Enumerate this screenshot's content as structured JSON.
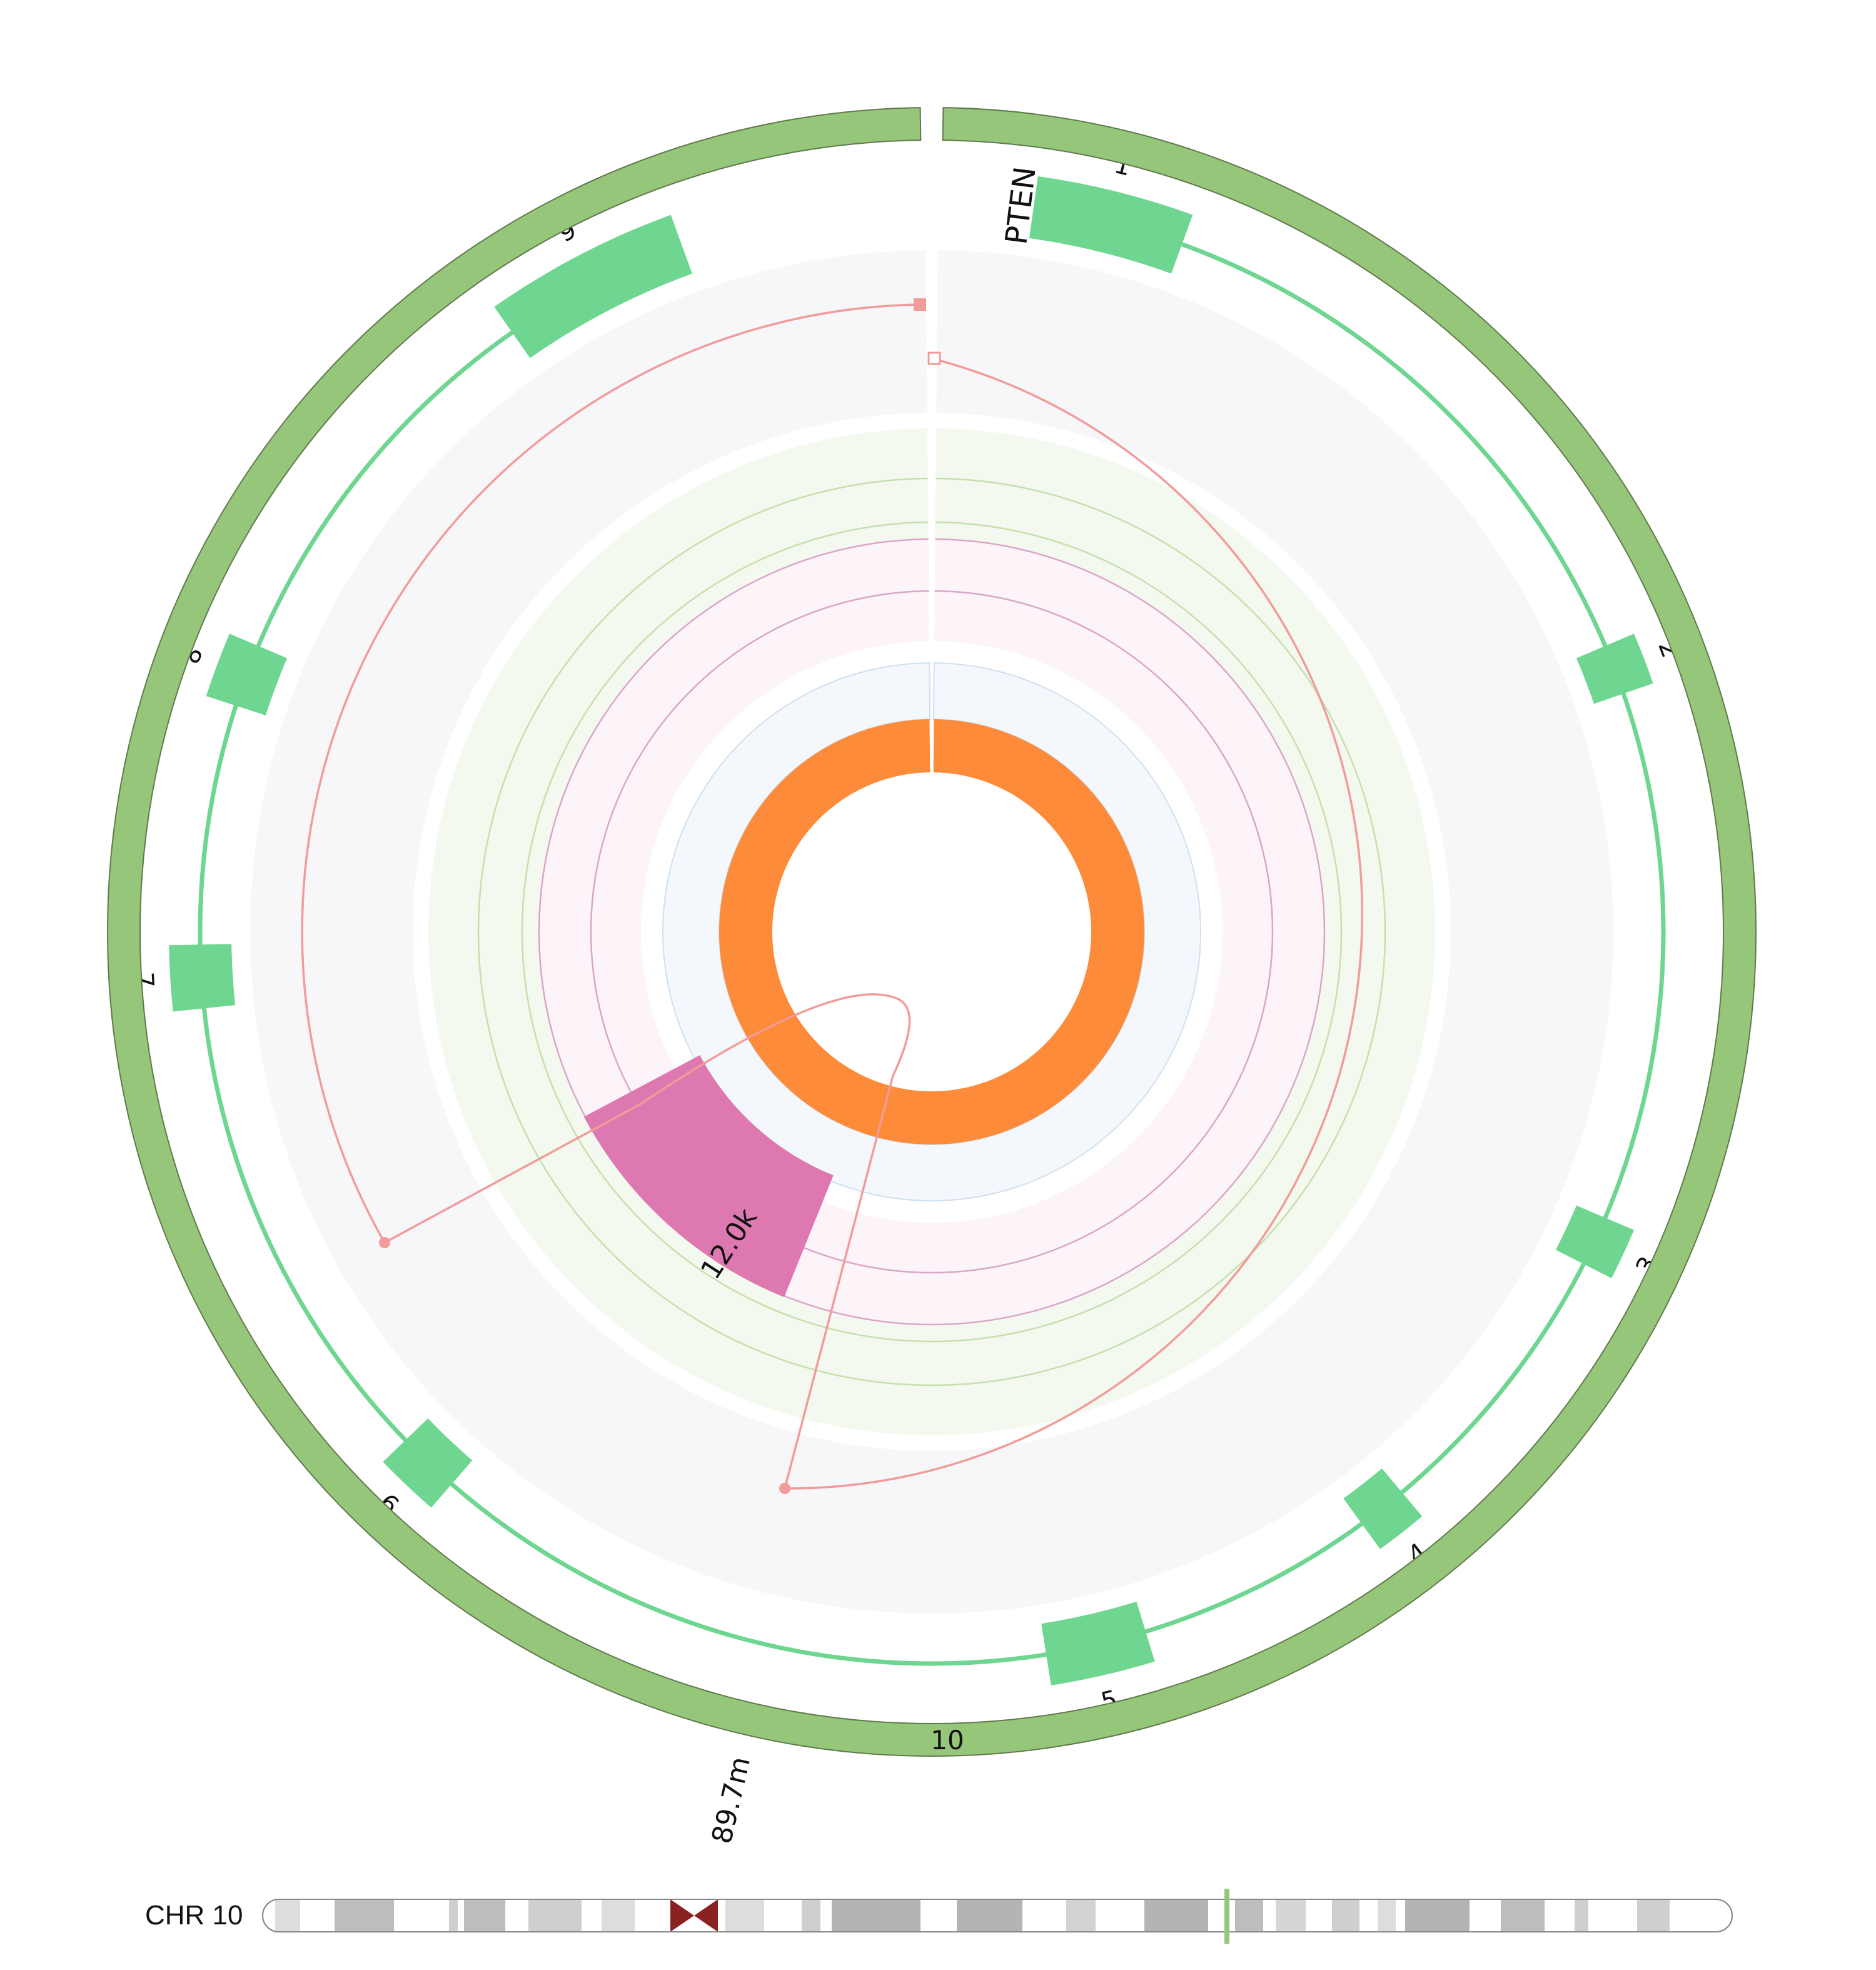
{
  "gene": {
    "name": "PTEN",
    "color": "#6ed690",
    "exons": [
      {
        "label": "1",
        "start": 8,
        "end": 20
      },
      {
        "label": "2",
        "start": 67,
        "end": 71
      },
      {
        "label": "3",
        "start": 113,
        "end": 117
      },
      {
        "label": "4",
        "start": 140,
        "end": 144
      },
      {
        "label": "5",
        "start": 163,
        "end": 171
      },
      {
        "label": "6",
        "start": 221,
        "end": 226
      },
      {
        "label": "7",
        "start": 264,
        "end": 269
      },
      {
        "label": "8",
        "start": 288,
        "end": 293
      },
      {
        "label": "9",
        "start": 325,
        "end": 340
      }
    ]
  },
  "chromosome": {
    "label": "10",
    "color": "#95c679",
    "ideogram_label": "CHR 10",
    "centromere_color": "#8b2222"
  },
  "annotations": {
    "position_label": "89.7m",
    "coverage_label": "12.0k"
  },
  "tracks": {
    "sv_color": "#f29b9b",
    "coverage_color": "#de78b0",
    "green_band_color": "#f3f9ee",
    "pink_band_color": "#fdf4f9",
    "blue_band_color": "#f4f8fc",
    "gray_band_color": "#f7f7f9",
    "inner_ring_color": "#fe8b3a"
  }
}
